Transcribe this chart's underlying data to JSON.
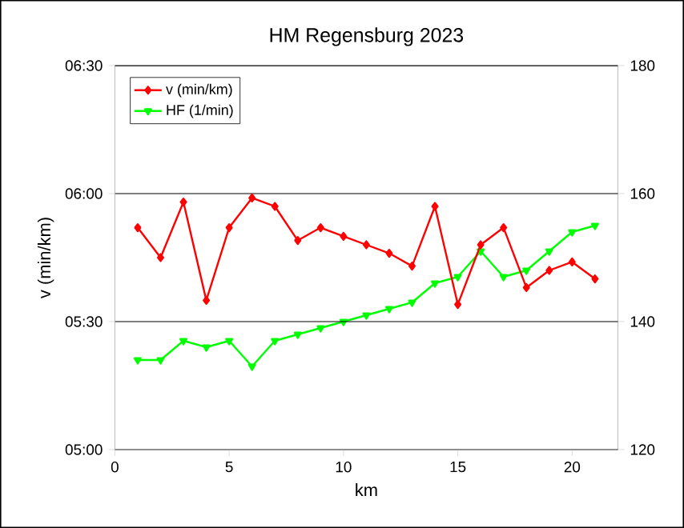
{
  "chart_data": {
    "type": "line",
    "title": "HM Regensburg 2023",
    "xlabel": "km",
    "ylabel": "v (min/km)",
    "x": [
      1,
      2,
      3,
      4,
      5,
      6,
      7,
      8,
      9,
      10,
      11,
      12,
      13,
      14,
      15,
      16,
      17,
      18,
      19,
      20,
      21
    ],
    "series": [
      {
        "name": "v (min/km)",
        "color": "#ff0000",
        "marker": "diamond",
        "values": [
          5.867,
          5.75,
          5.967,
          5.583,
          5.867,
          5.983,
          5.95,
          5.817,
          5.867,
          5.833,
          5.8,
          5.767,
          5.717,
          5.95,
          5.567,
          5.8,
          5.867,
          5.633,
          5.7,
          5.733,
          5.667
        ]
      },
      {
        "name": "HF (1/min)",
        "color": "#00ff00",
        "marker": "triangle",
        "axis": "y2",
        "values": [
          134,
          134,
          137,
          136,
          137,
          133,
          137,
          138,
          139,
          140,
          141,
          142,
          143,
          146,
          147,
          151,
          147,
          148,
          151,
          154,
          155
        ]
      }
    ],
    "xlim": [
      0,
      22
    ],
    "xticks": [
      0,
      5,
      10,
      15,
      20
    ],
    "ylim": [
      5.0,
      6.5
    ],
    "yticks": [
      {
        "value": 5.0,
        "label": "05:00"
      },
      {
        "value": 5.5,
        "label": "05:30"
      },
      {
        "value": 6.0,
        "label": "06:00"
      },
      {
        "value": 6.5,
        "label": "06:30"
      }
    ],
    "y2lim": [
      120,
      180
    ],
    "y2ticks": [
      120,
      140,
      160,
      180
    ],
    "grid": "y",
    "legend": "top left"
  }
}
